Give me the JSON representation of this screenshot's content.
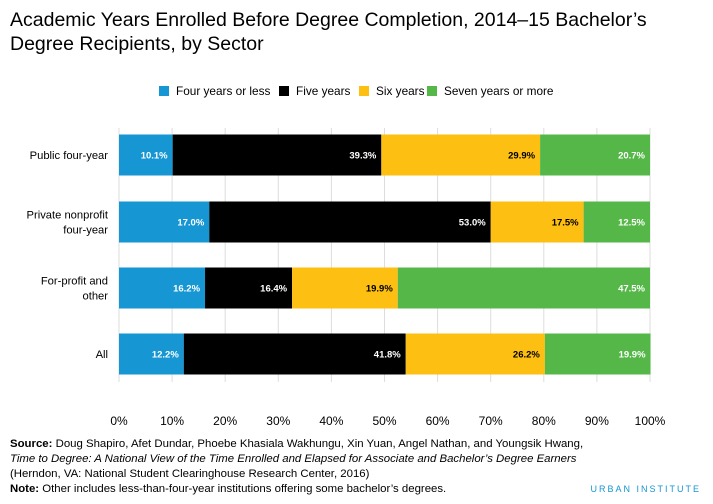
{
  "chart_data": {
    "type": "bar",
    "orientation": "horizontal",
    "stacked": true,
    "title": "Academic Years Enrolled Before Degree Completion, 2014–15 Bachelor’s Degree Recipients, by Sector",
    "categories": [
      [
        "Public four-year"
      ],
      [
        "Private nonprofit",
        "four-year"
      ],
      [
        "For-profit and",
        "other"
      ],
      [
        "All"
      ]
    ],
    "series": [
      {
        "name": "Four years or less",
        "color": "#1696d2",
        "values": [
          10.1,
          17.0,
          16.2,
          12.2
        ],
        "labels": [
          "10.1%",
          "17.0%",
          "16.2%",
          "12.2%"
        ],
        "label_color": "#ffffff"
      },
      {
        "name": "Five years",
        "color": "#000000",
        "values": [
          39.3,
          53.0,
          16.4,
          41.8
        ],
        "labels": [
          "39.3%",
          "53.0%",
          "16.4%",
          "41.8%"
        ],
        "label_color": "#ffffff"
      },
      {
        "name": "Six years",
        "color": "#fdbf11",
        "values": [
          29.9,
          17.5,
          19.9,
          26.2
        ],
        "labels": [
          "29.9%",
          "17.5%",
          "19.9%",
          "26.2%"
        ],
        "label_color": "#000000"
      },
      {
        "name": "Seven years or more",
        "color": "#55b748",
        "values": [
          20.7,
          12.5,
          47.5,
          19.9
        ],
        "labels": [
          "20.7%",
          "12.5%",
          "47.5%",
          "19.9%"
        ],
        "label_color": "#ffffff"
      }
    ],
    "xlim": [
      0,
      100
    ],
    "xticks": [
      "0%",
      "10%",
      "20%",
      "30%",
      "40%",
      "50%",
      "60%",
      "70%",
      "80%",
      "90%",
      "100%"
    ],
    "grid": true,
    "legend_position": "top"
  },
  "source": {
    "label": "Source:",
    "text": "Doug Shapiro, Afet Dundar, Phoebe Khasiala Wakhungu, Xin Yuan, Angel Nathan, and Youngsik Hwang,",
    "title": "Time to Degree: A National View of the Time Enrolled and Elapsed for Associate and Bachelor’s Degree Earners",
    "publisher": "(Herndon, VA: National Student Clearinghouse Research Center, 2016)"
  },
  "note": {
    "label": "Note:",
    "text": "Other includes less-than-four-year institutions offering some bachelor’s degrees."
  },
  "brand": "URBAN INSTITUTE"
}
